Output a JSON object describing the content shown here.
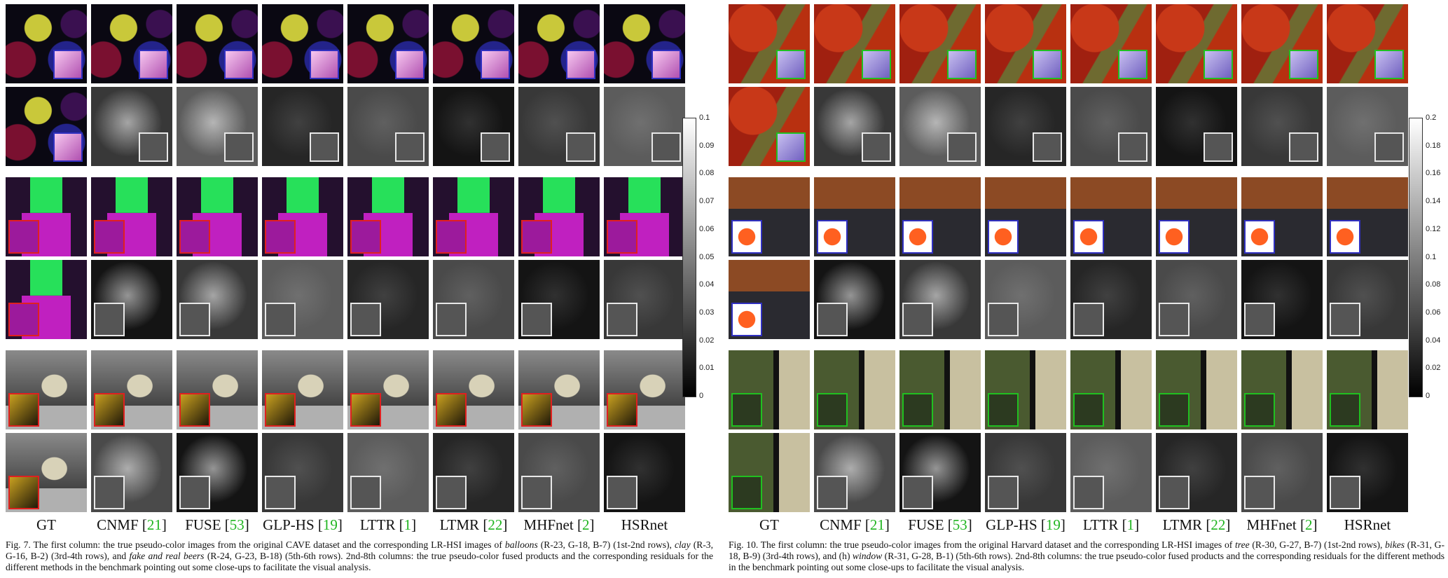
{
  "left_figure": {
    "methods": [
      {
        "name": "GT",
        "ref": ""
      },
      {
        "name": "CNMF",
        "ref": "21"
      },
      {
        "name": "FUSE",
        "ref": "53"
      },
      {
        "name": "GLP-HS",
        "ref": "19"
      },
      {
        "name": "LTTR",
        "ref": "1"
      },
      {
        "name": "LTMR",
        "ref": "22"
      },
      {
        "name": "MHFnet",
        "ref": "2"
      },
      {
        "name": "HSRnet",
        "ref": ""
      }
    ],
    "colorbar_ticks": [
      "0.1",
      "0.09",
      "0.08",
      "0.07",
      "0.06",
      "0.05",
      "0.04",
      "0.03",
      "0.02",
      "0.01",
      "0"
    ],
    "caption": {
      "label": "Fig. 7.",
      "t1": "  The first column: the true pseudo-color images from the original CAVE dataset and the corresponding LR-HSI images of ",
      "i1": "balloons",
      "t2": " (R-23, G-18, B-7) (1st-2nd rows), ",
      "i2": "clay",
      "t3": " (R-3, G-16, B-2) (3rd-4th rows), and ",
      "i3": "fake and real beers",
      "t4": " (R-24, G-23, B-18) (5th-6th rows). 2nd-8th columns: the true pseudo-color fused products and the corresponding residuals for the different methods in the benchmark pointing out some close-ups to facilitate the visual analysis."
    }
  },
  "right_figure": {
    "methods": [
      {
        "name": "GT",
        "ref": ""
      },
      {
        "name": "CNMF",
        "ref": "21"
      },
      {
        "name": "FUSE",
        "ref": "53"
      },
      {
        "name": "GLP-HS",
        "ref": "19"
      },
      {
        "name": "LTTR",
        "ref": "1"
      },
      {
        "name": "LTMR",
        "ref": "22"
      },
      {
        "name": "MHFnet",
        "ref": "2"
      },
      {
        "name": "HSRnet",
        "ref": ""
      }
    ],
    "colorbar_ticks": [
      "0.2",
      "0.18",
      "0.16",
      "0.14",
      "0.12",
      "0.1",
      "0.08",
      "0.06",
      "0.04",
      "0.02",
      "0"
    ],
    "caption": {
      "label": "Fig. 10.",
      "t1": "  The first column: the true pseudo-color images from the original Harvard dataset and the corresponding LR-HSI images of ",
      "i1": "tree",
      "t2": " (R-30, G-27, B-7) (1st-2nd rows), ",
      "i2": "bikes",
      "t3": " (R-31, G-18, B-9) (3rd-4th rows), and (h) ",
      "i3": "window",
      "t4": " (R-31, G-28, B-1) (5th-6th rows). 2nd-8th columns: the true pseudo-color fused products and the corresponding residuals for the different methods in the benchmark pointing out some close-ups to facilitate the visual analysis."
    }
  },
  "colors": {
    "reference_link": "#21b521",
    "inset_blue": "#3030c0",
    "inset_red": "#e02020",
    "inset_green": "#20c020"
  }
}
